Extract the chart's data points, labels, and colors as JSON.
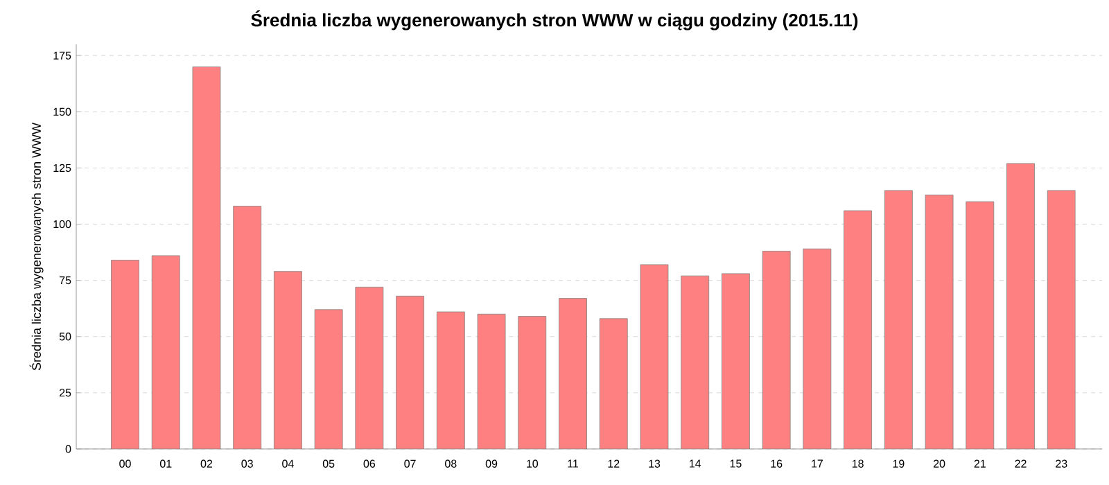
{
  "chart_data": {
    "type": "bar",
    "title": "Średnia liczba wygenerowanych stron WWW w ciągu godziny (2015.11)",
    "ylabel": "Średnia liczba wygenerowanych stron WWW",
    "categories": [
      "00",
      "01",
      "02",
      "03",
      "04",
      "05",
      "06",
      "07",
      "08",
      "09",
      "10",
      "11",
      "12",
      "13",
      "14",
      "15",
      "16",
      "17",
      "18",
      "19",
      "20",
      "21",
      "22",
      "23"
    ],
    "values": [
      84,
      86,
      170,
      108,
      79,
      62,
      72,
      68,
      61,
      60,
      59,
      67,
      58,
      82,
      77,
      78,
      88,
      89,
      106,
      115,
      113,
      110,
      127,
      115
    ],
    "color": "#ff8080",
    "ylim": [
      0,
      180
    ],
    "yticks": [
      0,
      25,
      50,
      75,
      100,
      125,
      150,
      175
    ],
    "grid": "y"
  }
}
